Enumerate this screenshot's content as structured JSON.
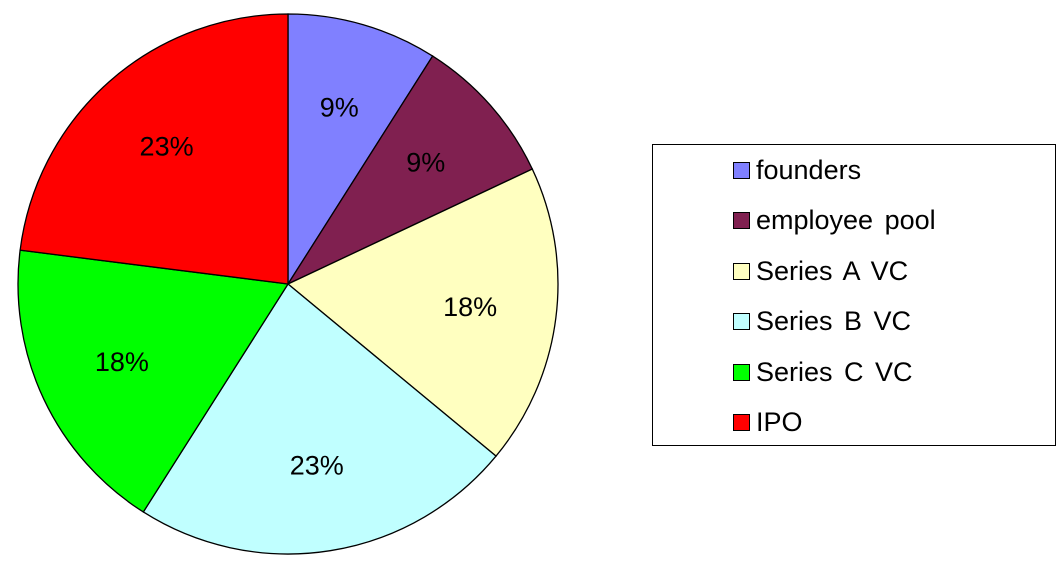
{
  "chart_data": {
    "type": "pie",
    "title": "",
    "start_angle_deg": 0,
    "direction": "clockwise",
    "slices": [
      {
        "label": "founders",
        "value": 9,
        "value_label": "9%",
        "color": "#8080FF"
      },
      {
        "label": "employee pool",
        "value": 9,
        "value_label": "9%",
        "color": "#802050"
      },
      {
        "label": "Series A VC",
        "value": 18,
        "value_label": "18%",
        "color": "#FFFFC0"
      },
      {
        "label": "Series B VC",
        "value": 23,
        "value_label": "23%",
        "color": "#C0FFFF"
      },
      {
        "label": "Series C VC",
        "value": 18,
        "value_label": "18%",
        "color": "#00FF00"
      },
      {
        "label": "IPO",
        "value": 23,
        "value_label": "23%",
        "color": "#FF0000"
      }
    ],
    "legend_position": "right"
  }
}
